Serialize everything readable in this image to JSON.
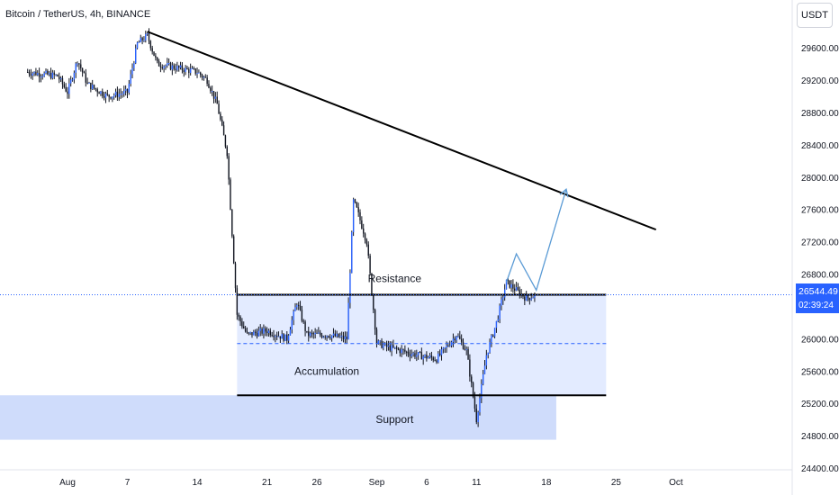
{
  "header": {
    "title": "Bitcoin / TetherUS, 4h, BINANCE",
    "currency_button": "USDT"
  },
  "price_badge": {
    "price": "26544.49",
    "countdown": "02:39:24"
  },
  "colors": {
    "up_candle": "#131722",
    "down_candle": "#131722",
    "projection": "#5b9bd5",
    "zone_fill": "#e3ebff",
    "support_fill": "#cfdcfb",
    "current_price_line": "#2962ff"
  },
  "chart_data": {
    "type": "candlestick",
    "symbol": "Bitcoin / TetherUS",
    "interval": "4h",
    "exchange": "BINANCE",
    "x_tick_labels": [
      "Aug",
      "7",
      "14",
      "21",
      "26",
      "Sep",
      "6",
      "11",
      "18",
      "25",
      "Oct"
    ],
    "y_tick_labels": [
      "29600.00",
      "29200.00",
      "28800.00",
      "28400.00",
      "28000.00",
      "27600.00",
      "27200.00",
      "26800.00",
      "26000.00",
      "25600.00",
      "25200.00",
      "24800.00",
      "24400.00"
    ],
    "y_range": [
      24400,
      29800
    ],
    "price_path": [
      {
        "date": "2023-07-28",
        "price": 29300
      },
      {
        "date": "2023-07-31",
        "price": 29250
      },
      {
        "date": "2023-08-01",
        "price": 29050
      },
      {
        "date": "2023-08-02",
        "price": 29450
      },
      {
        "date": "2023-08-03",
        "price": 29150
      },
      {
        "date": "2023-08-05",
        "price": 29000
      },
      {
        "date": "2023-08-07",
        "price": 29050
      },
      {
        "date": "2023-08-08",
        "price": 29650
      },
      {
        "date": "2023-08-09",
        "price": 29750
      },
      {
        "date": "2023-08-10",
        "price": 29400
      },
      {
        "date": "2023-08-12",
        "price": 29350
      },
      {
        "date": "2023-08-14",
        "price": 29300
      },
      {
        "date": "2023-08-15",
        "price": 29200
      },
      {
        "date": "2023-08-16",
        "price": 28900
      },
      {
        "date": "2023-08-17",
        "price": 28300
      },
      {
        "date": "2023-08-18",
        "price": 26300
      },
      {
        "date": "2023-08-19",
        "price": 26050
      },
      {
        "date": "2023-08-21",
        "price": 26100
      },
      {
        "date": "2023-08-23",
        "price": 26000
      },
      {
        "date": "2023-08-24",
        "price": 26450
      },
      {
        "date": "2023-08-25",
        "price": 26050
      },
      {
        "date": "2023-08-27",
        "price": 26050
      },
      {
        "date": "2023-08-29",
        "price": 26000
      },
      {
        "date": "2023-08-29T16:00",
        "price": 27700
      },
      {
        "date": "2023-08-30",
        "price": 27600
      },
      {
        "date": "2023-08-31",
        "price": 27200
      },
      {
        "date": "2023-09-01",
        "price": 25950
      },
      {
        "date": "2023-09-02",
        "price": 25900
      },
      {
        "date": "2023-09-05",
        "price": 25800
      },
      {
        "date": "2023-09-07",
        "price": 25750
      },
      {
        "date": "2023-09-08",
        "price": 25900
      },
      {
        "date": "2023-09-09",
        "price": 26050
      },
      {
        "date": "2023-09-10",
        "price": 25850
      },
      {
        "date": "2023-09-11",
        "price": 25000
      },
      {
        "date": "2023-09-12",
        "price": 25800
      },
      {
        "date": "2023-09-13",
        "price": 26200
      },
      {
        "date": "2023-09-14",
        "price": 26700
      },
      {
        "date": "2023-09-15",
        "price": 26600
      },
      {
        "date": "2023-09-16",
        "price": 26500
      },
      {
        "date": "2023-09-17",
        "price": 26544
      }
    ],
    "current_price": 26544.49,
    "annotations": {
      "trendline": {
        "from": {
          "date": "2023-08-09",
          "price": 29800
        },
        "to": {
          "date": "2023-09-29",
          "price": 27350
        }
      },
      "resistance": {
        "label": "Resistance",
        "price": 26544,
        "from": "2023-08-18",
        "to": "2023-09-24"
      },
      "support": {
        "label": "Support",
        "price": 25300,
        "from": "2023-08-18",
        "to": "2023-09-24"
      },
      "accumulation": {
        "label": "Accumulation",
        "price_top": 26544,
        "price_bottom": 25300,
        "mid": 25940
      },
      "support_zone": {
        "price_top": 25300,
        "price_bottom": 24750,
        "to": "2023-09-19"
      },
      "projection": [
        {
          "date": "2023-09-14",
          "price": 26700
        },
        {
          "date": "2023-09-15",
          "price": 27050
        },
        {
          "date": "2023-09-17",
          "price": 26600
        },
        {
          "date": "2023-09-20",
          "price": 27850
        }
      ]
    }
  }
}
